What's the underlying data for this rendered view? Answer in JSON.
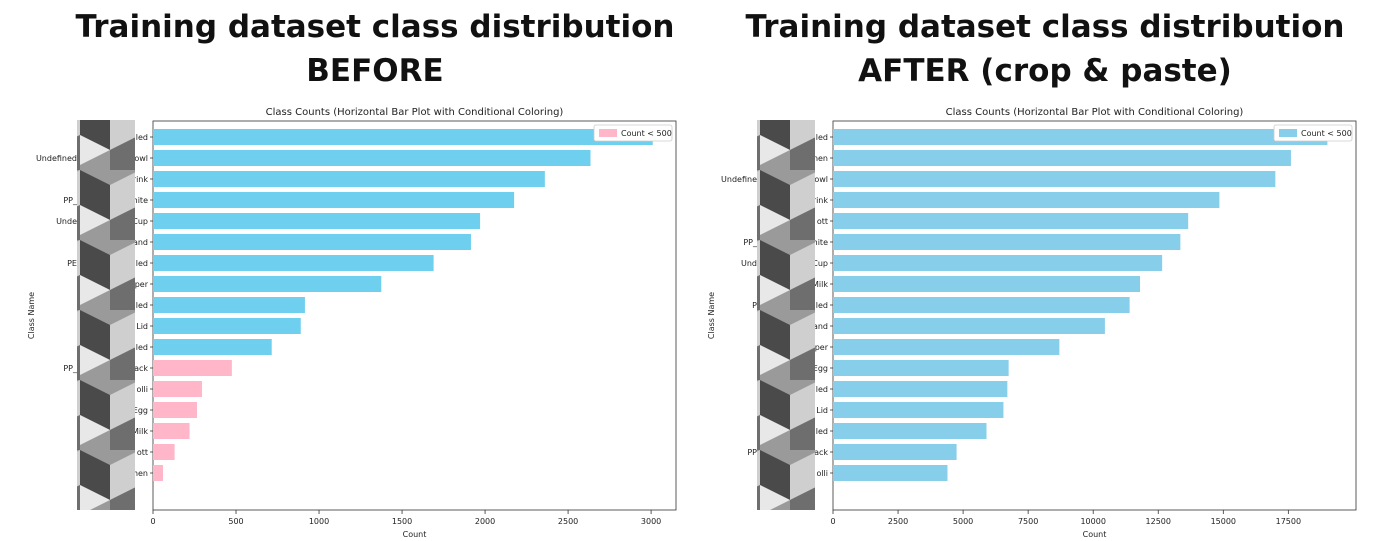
{
  "headings": {
    "before": {
      "line1": "Training dataset class distribution",
      "line2": "BEFORE"
    },
    "after": {
      "line1": "Training dataset class distribution",
      "line2": "AFTER (crop & paste)"
    }
  },
  "chart_data": [
    {
      "type": "bar",
      "orientation": "horizontal",
      "title": "Class Counts (Horizontal Bar Plot with Conditional Coloring)",
      "xlabel": "Count",
      "ylabel": "Class Name",
      "xlim": [
        0,
        3150
      ],
      "xticks": [
        0,
        500,
        1000,
        1500,
        2000,
        2500,
        3000
      ],
      "legend": {
        "label": "Count < 500",
        "color": "#ffb6c8",
        "position": "top-right"
      },
      "threshold": 500,
      "colors": {
        "above": "#6ecfee",
        "below": "#ffb6c8"
      },
      "categories": [
        "led",
        "owl",
        "rink",
        "hite",
        "Cup",
        "and",
        "led",
        "per",
        "led",
        "Lid",
        "led",
        "ack",
        "olli",
        "Egg",
        "Milk",
        "ott",
        "men"
      ],
      "visible_left_labels": [
        {
          "row": 1,
          "text": "Undefined"
        },
        {
          "row": 3,
          "text": "PP_"
        },
        {
          "row": 4,
          "text": "Unde"
        },
        {
          "row": 6,
          "text": "PE"
        },
        {
          "row": 11,
          "text": "PP_"
        }
      ],
      "values": [
        3010,
        2635,
        2360,
        2175,
        1970,
        1915,
        1690,
        1375,
        915,
        890,
        715,
        475,
        295,
        265,
        220,
        130,
        60
      ]
    },
    {
      "type": "bar",
      "orientation": "horizontal",
      "title": "Class Counts (Horizontal Bar Plot with Conditional Coloring)",
      "xlabel": "Count",
      "ylabel": "Class Name",
      "xlim": [
        0,
        20100
      ],
      "xticks": [
        0,
        2500,
        5000,
        7500,
        10000,
        12500,
        15000,
        17500
      ],
      "legend": {
        "label": "Count < 500",
        "color": "#87ceeb",
        "position": "top-right"
      },
      "threshold": 500,
      "colors": {
        "above": "#87ceeb",
        "below": "#87ceeb"
      },
      "categories": [
        "led",
        "nen",
        "owl",
        "rink",
        "ott",
        "hite",
        "Cup",
        "Milk",
        "led",
        "and",
        "per",
        "Egg",
        "led",
        "Lid",
        "led",
        "ack",
        "olli"
      ],
      "visible_left_labels": [
        {
          "row": 2,
          "text": "Undefine"
        },
        {
          "row": 5,
          "text": "PP_"
        },
        {
          "row": 6,
          "text": "Und"
        },
        {
          "row": 8,
          "text": "P"
        },
        {
          "row": 15,
          "text": "PP"
        }
      ],
      "values": [
        19000,
        17600,
        17000,
        14850,
        13650,
        13350,
        12650,
        11800,
        11400,
        10450,
        8700,
        6750,
        6700,
        6550,
        5900,
        4750,
        4400
      ]
    }
  ]
}
